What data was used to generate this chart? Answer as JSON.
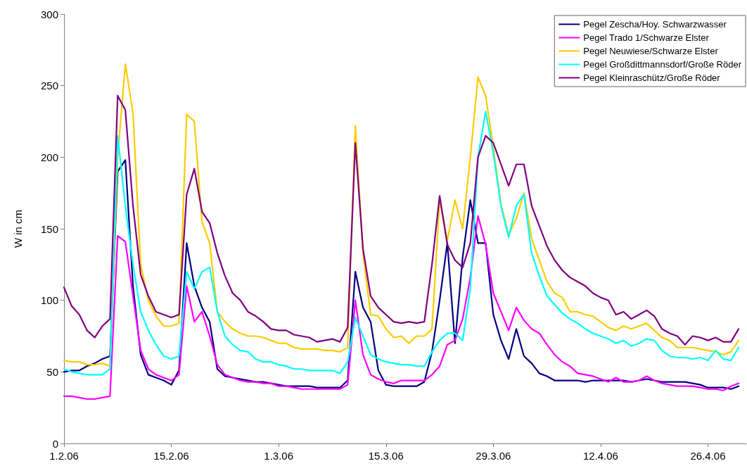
{
  "chart_data": {
    "type": "line",
    "ylabel": "W in cm",
    "x": [
      "--02-01",
      "--02-02",
      "--02-03",
      "--02-04",
      "--02-05",
      "--02-06",
      "--02-07",
      "--02-08",
      "--02-09",
      "--02-10",
      "--02-11",
      "--02-12",
      "--02-13",
      "--02-14",
      "--02-15",
      "--02-16",
      "--02-17",
      "--02-18",
      "--02-19",
      "--02-20",
      "--02-21",
      "--02-22",
      "--02-23",
      "--02-24",
      "--02-25",
      "--02-26",
      "--02-27",
      "--02-28",
      "--03-01",
      "--03-02",
      "--03-03",
      "--03-04",
      "--03-05",
      "--03-06",
      "--03-07",
      "--03-08",
      "--03-09",
      "--03-10",
      "--03-11",
      "--03-12",
      "--03-13",
      "--03-14",
      "--03-15",
      "--03-16",
      "--03-17",
      "--03-18",
      "--03-19",
      "--03-20",
      "--03-21",
      "--03-22",
      "--03-23",
      "--03-24",
      "--03-25",
      "--03-26",
      "--03-27",
      "--03-28",
      "--03-29",
      "--03-30",
      "--03-31",
      "--04-01",
      "--04-02",
      "--04-03",
      "--04-04",
      "--04-05",
      "--04-06",
      "--04-07",
      "--04-08",
      "--04-09",
      "--04-10",
      "--04-11",
      "--04-12",
      "--04-13",
      "--04-14",
      "--04-15",
      "--04-16",
      "--04-17",
      "--04-18",
      "--04-19",
      "--04-20",
      "--04-21",
      "--04-22",
      "--04-23",
      "--04-24",
      "--04-25",
      "--04-26",
      "--04-27",
      "--04-28",
      "--04-29",
      "--04-30"
    ],
    "series": [
      {
        "name": "Pegel Zescha/Hoy. Schwarzwasser",
        "color": "#000080",
        "values": [
          50,
          51,
          51,
          54,
          56,
          59,
          61,
          190,
          198,
          110,
          62,
          48,
          46,
          44,
          41,
          51,
          140,
          110,
          95,
          85,
          52,
          47,
          46,
          45,
          44,
          43,
          43,
          42,
          41,
          40,
          40,
          40,
          40,
          39,
          39,
          39,
          39,
          44,
          120,
          95,
          85,
          51,
          41,
          40,
          40,
          40,
          40,
          43,
          64,
          100,
          140,
          70,
          130,
          170,
          140,
          140,
          90,
          72,
          59,
          80,
          61,
          56,
          49,
          47,
          44,
          44,
          44,
          44,
          43,
          44,
          44,
          44,
          44,
          44,
          43,
          44,
          45,
          44,
          43,
          43,
          43,
          43,
          42,
          41,
          39,
          39,
          39,
          38,
          40
        ]
      },
      {
        "name": "Pegel Trado 1/Schwarze Elster",
        "color": "#ff00ff",
        "values": [
          33,
          33,
          32,
          31,
          31,
          32,
          33,
          145,
          141,
          103,
          65,
          52,
          48,
          46,
          44,
          48,
          110,
          85,
          92,
          75,
          55,
          48,
          46,
          44,
          43,
          43,
          42,
          42,
          40,
          40,
          39,
          38,
          38,
          38,
          38,
          38,
          38,
          41,
          100,
          62,
          48,
          45,
          43,
          42,
          44,
          44,
          44,
          44,
          48,
          54,
          69,
          72,
          87,
          116,
          159,
          139,
          105,
          92,
          79,
          95,
          86,
          80,
          77,
          69,
          62,
          57,
          54,
          49,
          48,
          47,
          45,
          43,
          46,
          43,
          43,
          44,
          47,
          44,
          42,
          41,
          40,
          40,
          40,
          39,
          38,
          38,
          37,
          40,
          42
        ]
      },
      {
        "name": "Pegel Neuwiese/Schwarze Elster",
        "color": "#ffcc00",
        "values": [
          58,
          57,
          57,
          55,
          55,
          56,
          54,
          200,
          265,
          231,
          125,
          100,
          89,
          82,
          82,
          84,
          230,
          225,
          155,
          140,
          92,
          85,
          80,
          77,
          75,
          75,
          74,
          72,
          70,
          70,
          67,
          66,
          66,
          66,
          65,
          65,
          64,
          67,
          222,
          133,
          90,
          89,
          80,
          74,
          75,
          70,
          75,
          75,
          80,
          170,
          142,
          170,
          150,
          200,
          256,
          243,
          207,
          167,
          146,
          157,
          175,
          143,
          128,
          113,
          105,
          102,
          92,
          92,
          90,
          89,
          85,
          81,
          79,
          82,
          80,
          82,
          84,
          79,
          74,
          72,
          67,
          67,
          67,
          66,
          65,
          64,
          62,
          64,
          72
        ]
      },
      {
        "name": "Pegel Großdittmannsdorf/Große Röder",
        "color": "#00ffff",
        "values": [
          52,
          50,
          49,
          48,
          48,
          48,
          52,
          215,
          166,
          125,
          92,
          79,
          69,
          61,
          59,
          61,
          120,
          108,
          120,
          123,
          92,
          75,
          69,
          65,
          64,
          59,
          57,
          57,
          55,
          54,
          52,
          52,
          51,
          51,
          51,
          51,
          49,
          57,
          88,
          75,
          62,
          59,
          57,
          56,
          55,
          55,
          54,
          54,
          64,
          72,
          77,
          77,
          72,
          108,
          200,
          232,
          203,
          166,
          144,
          166,
          174,
          133,
          117,
          103,
          97,
          91,
          87,
          84,
          80,
          77,
          75,
          73,
          70,
          72,
          68,
          70,
          73,
          72,
          65,
          61,
          60,
          60,
          59,
          60,
          58,
          65,
          59,
          58,
          67
        ]
      },
      {
        "name": "Pegel Kleinraschütz/Große Röder",
        "color": "#800080",
        "values": [
          109,
          96,
          90,
          79,
          74,
          82,
          87,
          243,
          233,
          166,
          118,
          103,
          92,
          90,
          88,
          90,
          174,
          192,
          162,
          154,
          133,
          117,
          105,
          100,
          92,
          89,
          85,
          80,
          79,
          79,
          76,
          75,
          74,
          71,
          72,
          73,
          71,
          81,
          210,
          136,
          103,
          95,
          90,
          85,
          84,
          85,
          84,
          85,
          125,
          173,
          139,
          128,
          123,
          140,
          200,
          215,
          210,
          195,
          180,
          195,
          195,
          166,
          152,
          138,
          128,
          121,
          116,
          113,
          110,
          105,
          102,
          100,
          90,
          92,
          87,
          90,
          93,
          89,
          80,
          77,
          75,
          69,
          75,
          74,
          72,
          74,
          71,
          71,
          80
        ]
      }
    ],
    "xlim": [
      "--02-01",
      "--05-01"
    ],
    "xticks": [
      {
        "value": "--02-01",
        "label": "1.2.06"
      },
      {
        "value": "--02-15",
        "label": "15.2.06"
      },
      {
        "value": "--03-01",
        "label": "1.3.06"
      },
      {
        "value": "--03-15",
        "label": "15.3.06"
      },
      {
        "value": "--03-29",
        "label": "29.3.06"
      },
      {
        "value": "--04-12",
        "label": "12.4.06"
      },
      {
        "value": "--04-26",
        "label": "26.4.06"
      }
    ],
    "ylim": [
      0,
      300
    ],
    "yticks": [
      0,
      50,
      100,
      150,
      200,
      250,
      300
    ],
    "grid": false,
    "legend": "top right",
    "marker": "none",
    "line_style": "solid"
  }
}
